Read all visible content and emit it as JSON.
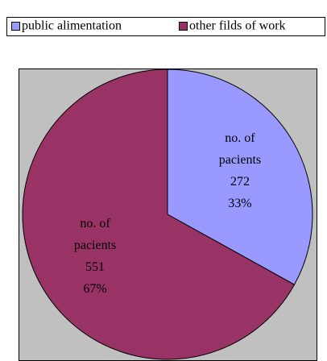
{
  "chart_data": {
    "type": "pie",
    "categories": [
      "public alimentation",
      "other filds of work"
    ],
    "values": [
      272,
      551
    ],
    "data_label": "no. of pacients",
    "percent_labels": [
      "33%",
      "67%"
    ],
    "colors": [
      "#9999ff",
      "#993366"
    ],
    "legend": "top"
  }
}
